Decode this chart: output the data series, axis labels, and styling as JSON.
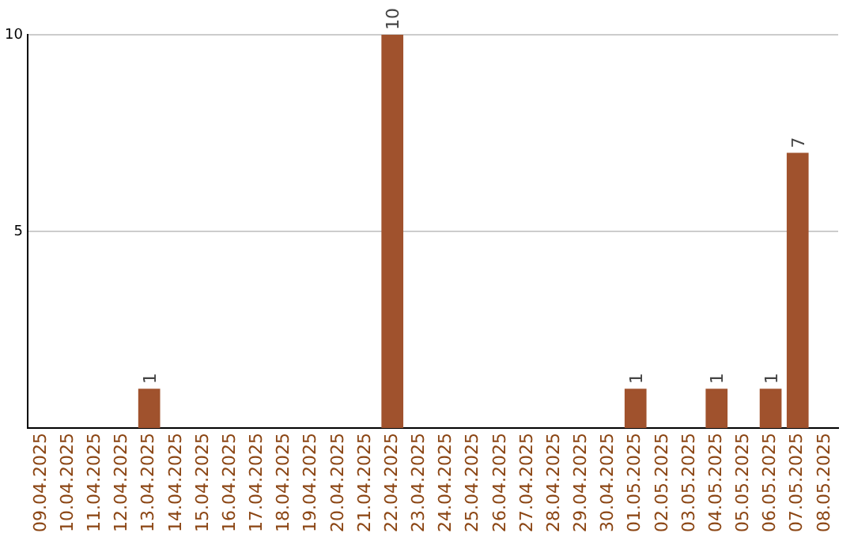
{
  "chart_data": {
    "type": "bar",
    "categories": [
      "09.04.2025",
      "10.04.2025",
      "11.04.2025",
      "12.04.2025",
      "13.04.2025",
      "14.04.2025",
      "15.04.2025",
      "16.04.2025",
      "17.04.2025",
      "18.04.2025",
      "19.04.2025",
      "20.04.2025",
      "21.04.2025",
      "22.04.2025",
      "23.04.2025",
      "24.04.2025",
      "25.04.2025",
      "26.04.2025",
      "27.04.2025",
      "28.04.2025",
      "29.04.2025",
      "30.04.2025",
      "01.05.2025",
      "02.05.2025",
      "03.05.2025",
      "04.05.2025",
      "05.05.2025",
      "06.05.2025",
      "07.05.2025",
      "08.05.2025"
    ],
    "values": [
      0,
      0,
      0,
      0,
      1,
      0,
      0,
      0,
      0,
      0,
      0,
      0,
      0,
      10,
      0,
      0,
      0,
      0,
      0,
      0,
      0,
      0,
      1,
      0,
      0,
      1,
      0,
      1,
      7,
      0
    ],
    "value_labels": [
      null,
      null,
      null,
      null,
      "1",
      null,
      null,
      null,
      null,
      null,
      null,
      null,
      null,
      "10",
      null,
      null,
      null,
      null,
      null,
      null,
      null,
      null,
      "1",
      null,
      null,
      "1",
      null,
      "1",
      "7",
      null
    ],
    "color": "#a0522d",
    "ylim": [
      0,
      10
    ],
    "yticks": [
      5,
      10
    ],
    "grid": "y",
    "legend": false
  }
}
